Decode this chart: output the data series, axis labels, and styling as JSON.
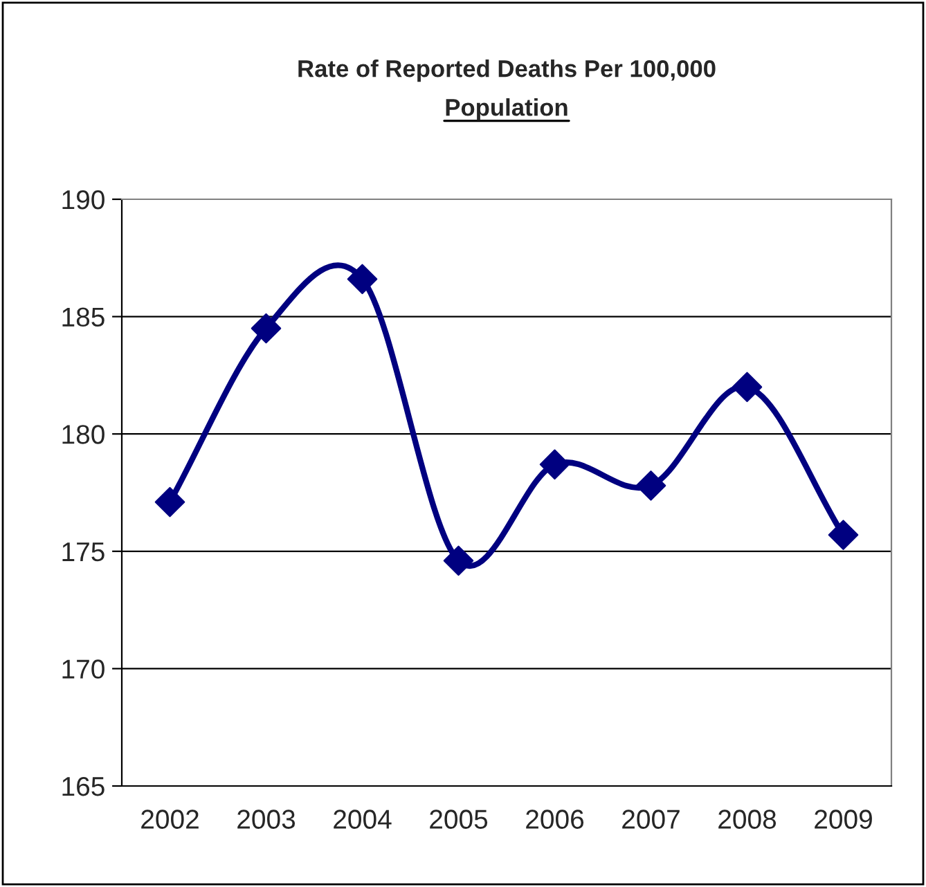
{
  "chart_data": {
    "type": "line",
    "title": "Rate of Reported Deaths Per 100,000\nPopulation",
    "categories": [
      "2002",
      "2003",
      "2004",
      "2005",
      "2006",
      "2007",
      "2008",
      "2009"
    ],
    "series": [
      {
        "color": "#000080",
        "values": [
          177.1,
          184.5,
          186.6,
          174.6,
          178.7,
          177.8,
          182.0,
          175.7
        ]
      }
    ],
    "ylim": [
      165,
      190
    ],
    "yticks": [
      165,
      170,
      175,
      180,
      185,
      190
    ],
    "grid": "y",
    "marker": "diamond",
    "line_style": "solid",
    "legend": false
  }
}
